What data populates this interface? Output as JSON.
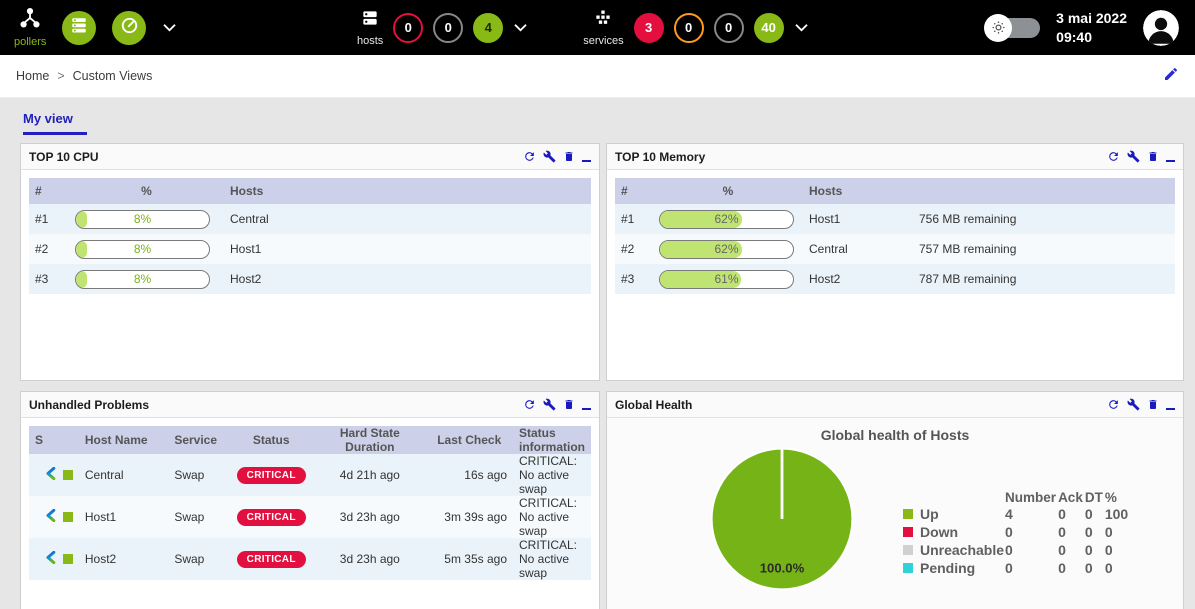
{
  "topbar": {
    "pollers": {
      "label": "pollers"
    },
    "hosts": {
      "label": "hosts",
      "counters": {
        "down": "0",
        "unreachable": "0",
        "up": "4"
      }
    },
    "services": {
      "label": "services",
      "counters": {
        "critical": "3",
        "warning": "0",
        "unknown": "0",
        "ok": "40"
      }
    },
    "clock": {
      "date": "3 mai 2022",
      "time": "09:40"
    }
  },
  "breadcrumb": {
    "home": "Home",
    "separator": ">",
    "current": "Custom Views"
  },
  "tabs": {
    "active": "My view"
  },
  "icons": {
    "topbar": [
      "pollers-icon",
      "poller-list-icon",
      "gauge-icon",
      "chevron-down-icon",
      "hosts-icon",
      "services-icon",
      "brightness-toggle-icon",
      "user-avatar-icon"
    ],
    "panel_actions": [
      "refresh-icon",
      "wrench-icon",
      "trash-icon",
      "minimize-icon"
    ],
    "misc": [
      "edit-pencil-icon",
      "centreon-logo-icon",
      "host-up-square"
    ]
  },
  "colors": {
    "accent_green": "#88b917",
    "critical_red": "#e30f3f",
    "warning_orange": "#ff9a1f",
    "neutral_gray": "#85878a",
    "pending_cyan": "#30d2da",
    "unreachable_gray": "#d0d0d0",
    "navy_icons": "#1a1abd",
    "table_header_bg": "#ccd0e8",
    "tab_blue": "#2121bb"
  },
  "panels": {
    "cpu": {
      "title": "TOP 10 CPU",
      "columns": [
        "#",
        "%",
        "Hosts"
      ],
      "rows": [
        {
          "rank": "#1",
          "percent": 8,
          "percent_label": "8%",
          "host": "Central"
        },
        {
          "rank": "#2",
          "percent": 8,
          "percent_label": "8%",
          "host": "Host1"
        },
        {
          "rank": "#3",
          "percent": 8,
          "percent_label": "8%",
          "host": "Host2"
        }
      ]
    },
    "memory": {
      "title": "TOP 10 Memory",
      "columns": [
        "#",
        "%",
        "Hosts"
      ],
      "rows": [
        {
          "rank": "#1",
          "percent": 62,
          "percent_label": "62%",
          "host": "Host1",
          "remaining": "756 MB remaining"
        },
        {
          "rank": "#2",
          "percent": 62,
          "percent_label": "62%",
          "host": "Central",
          "remaining": "757 MB remaining"
        },
        {
          "rank": "#3",
          "percent": 61,
          "percent_label": "61%",
          "host": "Host2",
          "remaining": "787 MB remaining"
        }
      ]
    },
    "problems": {
      "title": "Unhandled Problems",
      "columns": [
        "S",
        "Host Name",
        "Service",
        "Status",
        "Hard State Duration",
        "Last Check",
        "Status information"
      ],
      "rows": [
        {
          "host": "Central",
          "service": "Swap",
          "status": "CRITICAL",
          "duration": "4d 21h ago",
          "last_check": "16s ago",
          "info": "CRITICAL: No active swap"
        },
        {
          "host": "Host1",
          "service": "Swap",
          "status": "CRITICAL",
          "duration": "3d 23h ago",
          "last_check": "3m 39s ago",
          "info": "CRITICAL: No active swap"
        },
        {
          "host": "Host2",
          "service": "Swap",
          "status": "CRITICAL",
          "duration": "3d 23h ago",
          "last_check": "5m 35s ago",
          "info": "CRITICAL: No active swap"
        }
      ]
    },
    "health": {
      "title": "Global Health",
      "chart_title": "Global health of Hosts",
      "pie_label": "100.0%",
      "legend": {
        "columns": [
          "Number",
          "Ack",
          "DT",
          "%"
        ],
        "rows": [
          {
            "label": "Up",
            "color": "#88b917",
            "number": "4",
            "ack": "0",
            "dt": "0",
            "pct": "100"
          },
          {
            "label": "Down",
            "color": "#e30f3f",
            "number": "0",
            "ack": "0",
            "dt": "0",
            "pct": "0"
          },
          {
            "label": "Unreachable",
            "color": "#d0d0d0",
            "number": "0",
            "ack": "0",
            "dt": "0",
            "pct": "0"
          },
          {
            "label": "Pending",
            "color": "#30d2da",
            "number": "0",
            "ack": "0",
            "dt": "0",
            "pct": "0"
          }
        ]
      }
    }
  },
  "chart_data": {
    "type": "pie",
    "title": "Global health of Hosts",
    "labels": [
      "Up",
      "Down",
      "Unreachable",
      "Pending"
    ],
    "values": [
      100,
      0,
      0,
      0
    ],
    "colors": [
      "#88b917",
      "#e30f3f",
      "#d0d0d0",
      "#30d2da"
    ],
    "annotations": [
      "100.0%"
    ],
    "legend_position": "right",
    "legend_table": {
      "columns": [
        "Number",
        "Ack",
        "DT",
        "%"
      ],
      "rows": [
        [
          "Up",
          4,
          0,
          0,
          100
        ],
        [
          "Down",
          0,
          0,
          0,
          0
        ],
        [
          "Unreachable",
          0,
          0,
          0,
          0
        ],
        [
          "Pending",
          0,
          0,
          0,
          0
        ]
      ]
    }
  }
}
